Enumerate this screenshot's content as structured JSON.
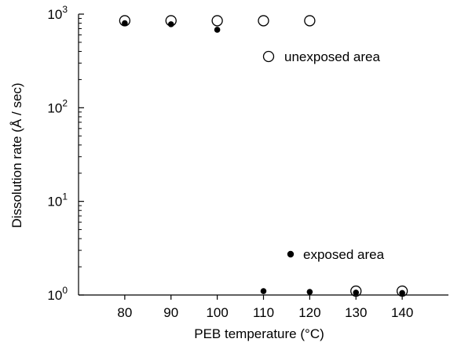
{
  "chart_data": {
    "type": "scatter",
    "xlabel": "PEB temperature (°C)",
    "ylabel": "Dissolution rate (Å / sec)",
    "xlim": [
      70,
      150
    ],
    "ylim": [
      1,
      1000
    ],
    "yscale": "log",
    "x_ticks": [
      80,
      90,
      100,
      110,
      120,
      130,
      140
    ],
    "y_ticks": [
      {
        "value": 1,
        "base": "10",
        "exp": "0"
      },
      {
        "value": 10,
        "base": "10",
        "exp": "1"
      },
      {
        "value": 100,
        "base": "10",
        "exp": "2"
      },
      {
        "value": 1000,
        "base": "10",
        "exp": "3"
      }
    ],
    "grid": false,
    "legend_position": "inside",
    "series": [
      {
        "name": "unexposed area",
        "marker": "open-circle",
        "color": "#000000",
        "points": [
          {
            "x": 80,
            "y": 850
          },
          {
            "x": 90,
            "y": 850
          },
          {
            "x": 100,
            "y": 850
          },
          {
            "x": 110,
            "y": 850
          },
          {
            "x": 120,
            "y": 850
          },
          {
            "x": 130,
            "y": 1.1
          },
          {
            "x": 140,
            "y": 1.1
          }
        ]
      },
      {
        "name": "exposed area",
        "marker": "filled-circle",
        "color": "#000000",
        "points": [
          {
            "x": 80,
            "y": 800
          },
          {
            "x": 90,
            "y": 780
          },
          {
            "x": 100,
            "y": 680
          },
          {
            "x": 110,
            "y": 1.1
          },
          {
            "x": 120,
            "y": 1.08
          },
          {
            "x": 130,
            "y": 1.06
          },
          {
            "x": 140,
            "y": 1.05
          }
        ]
      }
    ]
  }
}
